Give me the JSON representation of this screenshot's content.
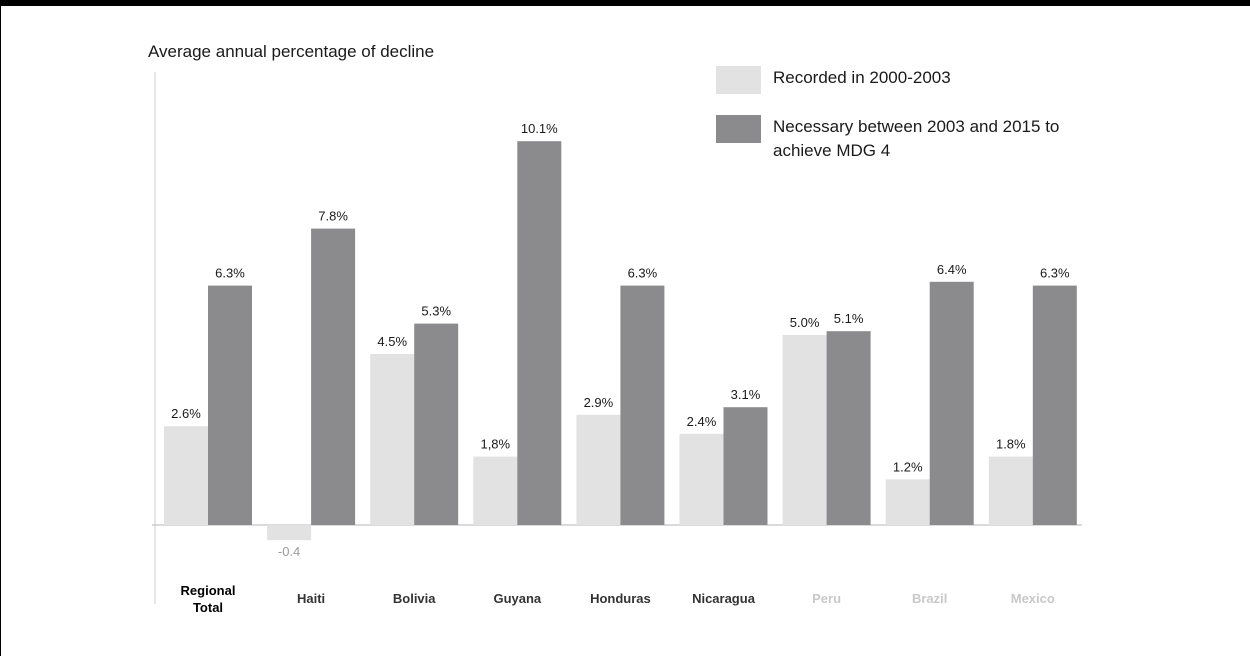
{
  "chart_data": {
    "type": "bar",
    "ylabel": "Average annual percentage of decline",
    "categories": [
      "Regional\nTotal",
      "Haiti",
      "Bolivia",
      "Guyana",
      "Honduras",
      "Nicaragua",
      "Peru",
      "Brazil",
      "Mexico"
    ],
    "category_colors": [
      "#000000",
      "#333333",
      "#333333",
      "#333333",
      "#333333",
      "#333333",
      "#c8c8c8",
      "#c8c8c8",
      "#c8c8c8"
    ],
    "series": [
      {
        "name": "Recorded in 2000-2003",
        "color": "#e2e2e3",
        "values": [
          2.6,
          -0.4,
          4.5,
          1.8,
          2.9,
          2.4,
          5.0,
          1.2,
          1.8
        ],
        "labels": [
          "2.6%",
          "-0.4",
          "4.5%",
          "1,8%",
          "2.9%",
          "2.4%",
          "5.0%",
          "1.2%",
          "1.8%"
        ]
      },
      {
        "name": "Necessary between 2003 and 2015  to achieve MDG 4",
        "color": "#8b8b8d",
        "values": [
          6.3,
          7.8,
          5.3,
          10.1,
          6.3,
          3.1,
          5.1,
          6.4,
          6.3
        ],
        "labels": [
          "6.3%",
          "7.8%",
          "5.3%",
          "10.1%",
          "6.3%",
          "3.1%",
          "5.1%",
          "6.4%",
          "6.3%"
        ]
      }
    ],
    "ylim": [
      -0.6,
      11.4
    ],
    "grid": false,
    "legend_position": "top-right"
  }
}
